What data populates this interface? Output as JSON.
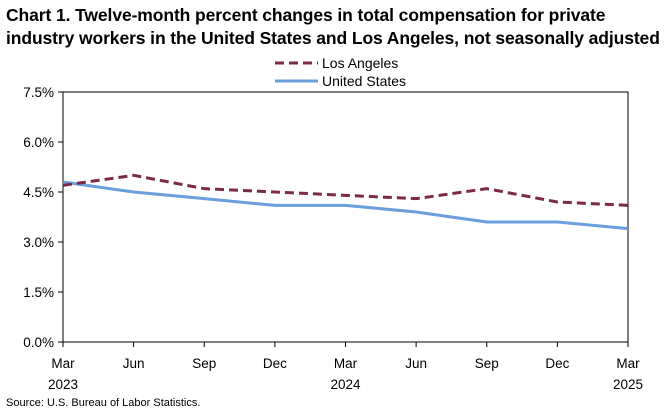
{
  "title_line1": "Chart 1. Twelve-month percent changes in total compensation for private",
  "title_line2": "industry workers in the United States and Los Angeles, not seasonally adjusted",
  "source": "Source: U.S. Bureau of Labor Statistics.",
  "chart_data": {
    "type": "line",
    "x": [
      "Mar 2023",
      "Jun 2023",
      "Sep 2023",
      "Dec 2023",
      "Mar 2024",
      "Jun 2024",
      "Sep 2024",
      "Dec 2024",
      "Mar 2025"
    ],
    "x_tick_labels": [
      {
        "month": "Mar",
        "year": "2023"
      },
      {
        "month": "Jun",
        "year": ""
      },
      {
        "month": "Sep",
        "year": ""
      },
      {
        "month": "Dec",
        "year": ""
      },
      {
        "month": "Mar",
        "year": "2024"
      },
      {
        "month": "Jun",
        "year": ""
      },
      {
        "month": "Sep",
        "year": ""
      },
      {
        "month": "Dec",
        "year": ""
      },
      {
        "month": "Mar",
        "year": "2025"
      }
    ],
    "y_tick_labels": [
      "0.0%",
      "1.5%",
      "3.0%",
      "4.5%",
      "6.0%",
      "7.5%"
    ],
    "ylim": [
      0,
      7.5
    ],
    "y_ticks": [
      0,
      1.5,
      3.0,
      4.5,
      6.0,
      7.5
    ],
    "grid": false,
    "legend_position": "top-center",
    "series": [
      {
        "name": "Los Angeles",
        "values": [
          4.7,
          5.0,
          4.6,
          4.5,
          4.4,
          4.3,
          4.6,
          4.2,
          4.1
        ],
        "color": "#7b2a47",
        "style": "dashed"
      },
      {
        "name": "United States",
        "values": [
          4.8,
          4.5,
          4.3,
          4.1,
          4.1,
          3.9,
          3.6,
          3.6,
          3.4
        ],
        "color": "#6a9edc",
        "style": "solid"
      }
    ]
  }
}
